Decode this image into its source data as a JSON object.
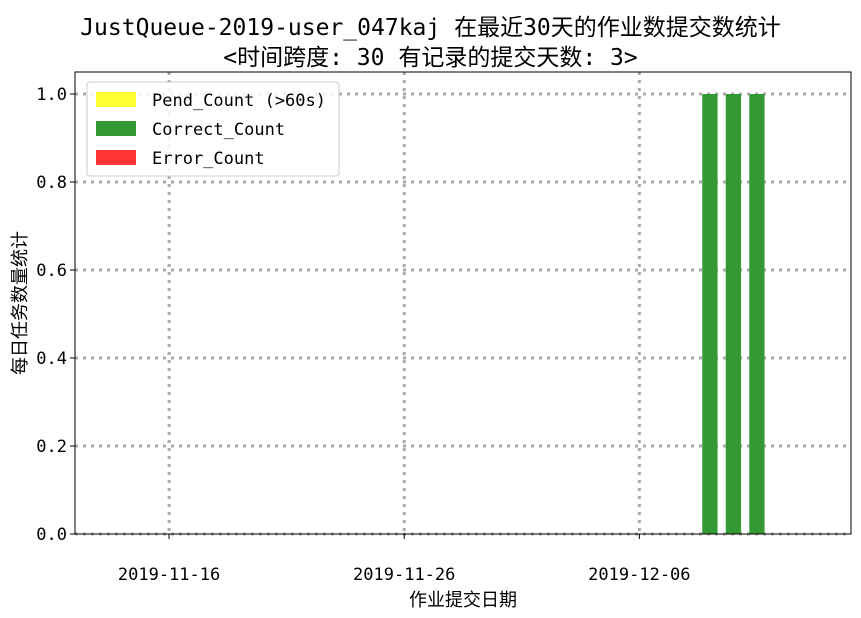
{
  "chart_data": {
    "type": "bar",
    "title_line1": "JustQueue-2019-user_047kaj 在最近30天的作业数提交数统计",
    "title_line2": "<时间跨度: 30  有记录的提交天数: 3>",
    "xlabel": "作业提交日期",
    "ylabel": "每日任务数量统计",
    "x_dates": [
      "2019-12-09",
      "2019-12-10",
      "2019-12-11"
    ],
    "x_range": [
      "2019-11-12",
      "2019-12-15"
    ],
    "x_ticks": [
      "2019-11-16",
      "2019-11-26",
      "2019-12-06"
    ],
    "ylim": [
      0,
      1.05
    ],
    "y_ticks": [
      "0.0",
      "0.2",
      "0.4",
      "0.6",
      "0.8",
      "1.0"
    ],
    "y_tick_values": [
      0,
      0.2,
      0.4,
      0.6,
      0.8,
      1.0
    ],
    "grid": true,
    "grid_style": "dotted",
    "legend_position": "upper-left",
    "series": [
      {
        "name": "Pend_Count (>60s)",
        "color": "#ffff33",
        "values": [
          0,
          0,
          0
        ]
      },
      {
        "name": "Correct_Count",
        "color": "#339933",
        "values": [
          1,
          1,
          1
        ]
      },
      {
        "name": "Error_Count",
        "color": "#ff3333",
        "values": [
          0,
          0,
          0
        ]
      }
    ]
  }
}
